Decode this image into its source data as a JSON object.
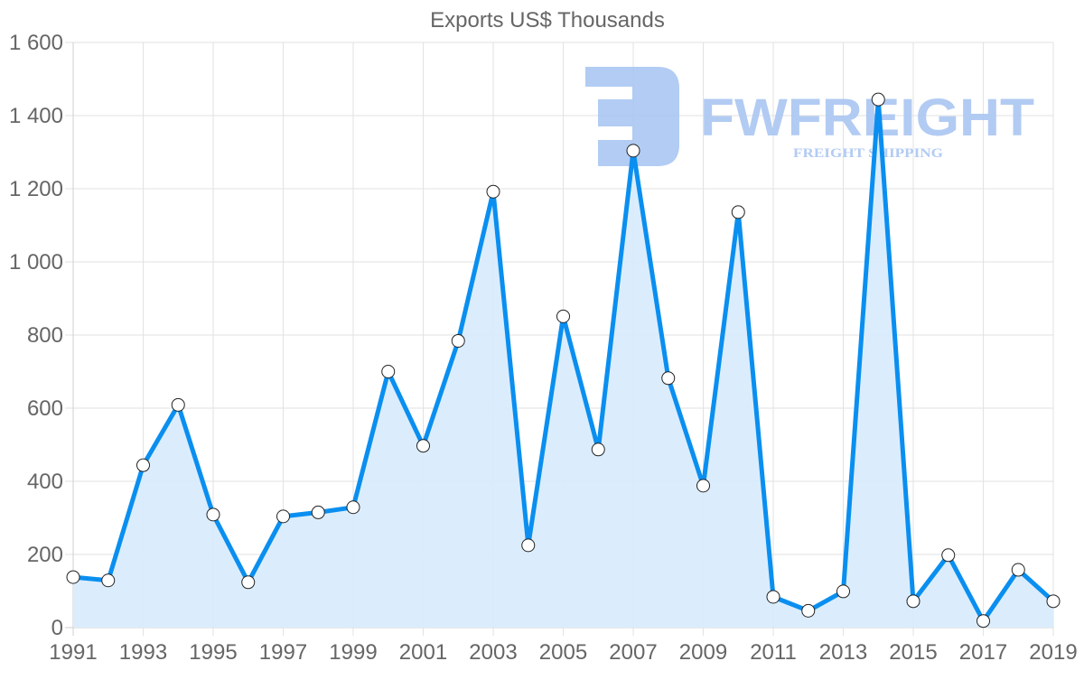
{
  "chart_data": {
    "type": "line",
    "title": "Exports US$ Thousands",
    "xlabel": "",
    "ylabel": "",
    "x": [
      1991,
      1992,
      1993,
      1994,
      1995,
      1996,
      1997,
      1998,
      1999,
      2000,
      2001,
      2002,
      2003,
      2004,
      2005,
      2006,
      2007,
      2008,
      2009,
      2010,
      2011,
      2012,
      2013,
      2014,
      2015,
      2016,
      2017,
      2018,
      2019
    ],
    "series": [
      {
        "name": "Exports US$ Thousands",
        "values": [
          138,
          129,
          444,
          609,
          309,
          124,
          304,
          315,
          329,
          700,
          497,
          784,
          1192,
          225,
          851,
          487,
          1304,
          682,
          388,
          1136,
          84,
          46,
          99,
          1444,
          72,
          198,
          18,
          158,
          72
        ],
        "color": "#0a8ff0",
        "fill": "#d9ecfc",
        "marker_fill": "#ffffff",
        "marker_stroke": "#222222"
      }
    ],
    "ylim": [
      0,
      1600
    ],
    "y_ticks": [
      0,
      200,
      400,
      600,
      800,
      1000,
      1200,
      1400,
      1600
    ],
    "y_tick_labels": [
      "0",
      "200",
      "400",
      "600",
      "800",
      "1 000",
      "1 200",
      "1 400",
      "1 600"
    ],
    "x_tick_labels": [
      "1991",
      "1993",
      "1995",
      "1997",
      "1999",
      "2001",
      "2003",
      "2005",
      "2007",
      "2009",
      "2011",
      "2013",
      "2015",
      "2017",
      "2019"
    ],
    "grid": true,
    "legend": "none"
  },
  "watermark": {
    "brand": "FWFREIGHT",
    "tagline": "FREIGHT SHIPPING",
    "color": "#aac6f2"
  },
  "colors": {
    "text": "#666666",
    "grid": "#e2e2e2",
    "line": "#0a8ff0",
    "area": "#d9ecfc"
  }
}
